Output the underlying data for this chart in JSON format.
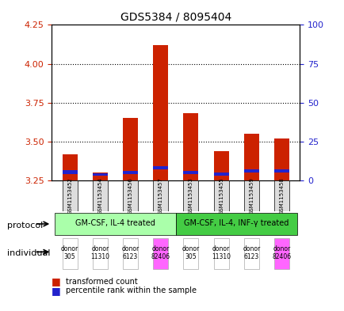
{
  "title": "GDS5384 / 8095404",
  "samples": [
    "GSM1153452",
    "GSM1153454",
    "GSM1153456",
    "GSM1153457",
    "GSM1153453",
    "GSM1153455",
    "GSM1153459",
    "GSM1153458"
  ],
  "transformed_count": [
    3.42,
    3.3,
    3.65,
    4.12,
    3.68,
    3.44,
    3.55,
    3.52
  ],
  "percentile_rank": [
    3.29,
    3.28,
    3.29,
    3.32,
    3.29,
    3.28,
    3.3,
    3.3
  ],
  "blue_height": [
    0.025,
    0.018,
    0.022,
    0.02,
    0.022,
    0.02,
    0.022,
    0.022
  ],
  "ylim": [
    3.25,
    4.25
  ],
  "yticks_left": [
    3.25,
    3.5,
    3.75,
    4.0,
    4.25
  ],
  "yticks_right": [
    0,
    25,
    50,
    75,
    100
  ],
  "bar_color_red": "#cc2200",
  "bar_color_blue": "#2222cc",
  "protocol_group1": "GM-CSF, IL-4 treated",
  "protocol_group2": "GM-CSF, IL-4, INF-γ treated",
  "protocol_group1_color": "#aaffaa",
  "protocol_group2_color": "#44cc44",
  "individuals": [
    "donor\n305",
    "donor\n11310",
    "donor\n6123",
    "donor\n82406",
    "donor\n305",
    "donor\n11310",
    "donor\n6123",
    "donor\n82406"
  ],
  "ind_colors": [
    "#ffffff",
    "#ffffff",
    "#ffffff",
    "#ff66ff",
    "#ffffff",
    "#ffffff",
    "#ffffff",
    "#ff66ff"
  ],
  "protocol_label_color": "#000000",
  "label_protocol": "protocol",
  "label_individual": "individual",
  "bar_width": 0.5
}
